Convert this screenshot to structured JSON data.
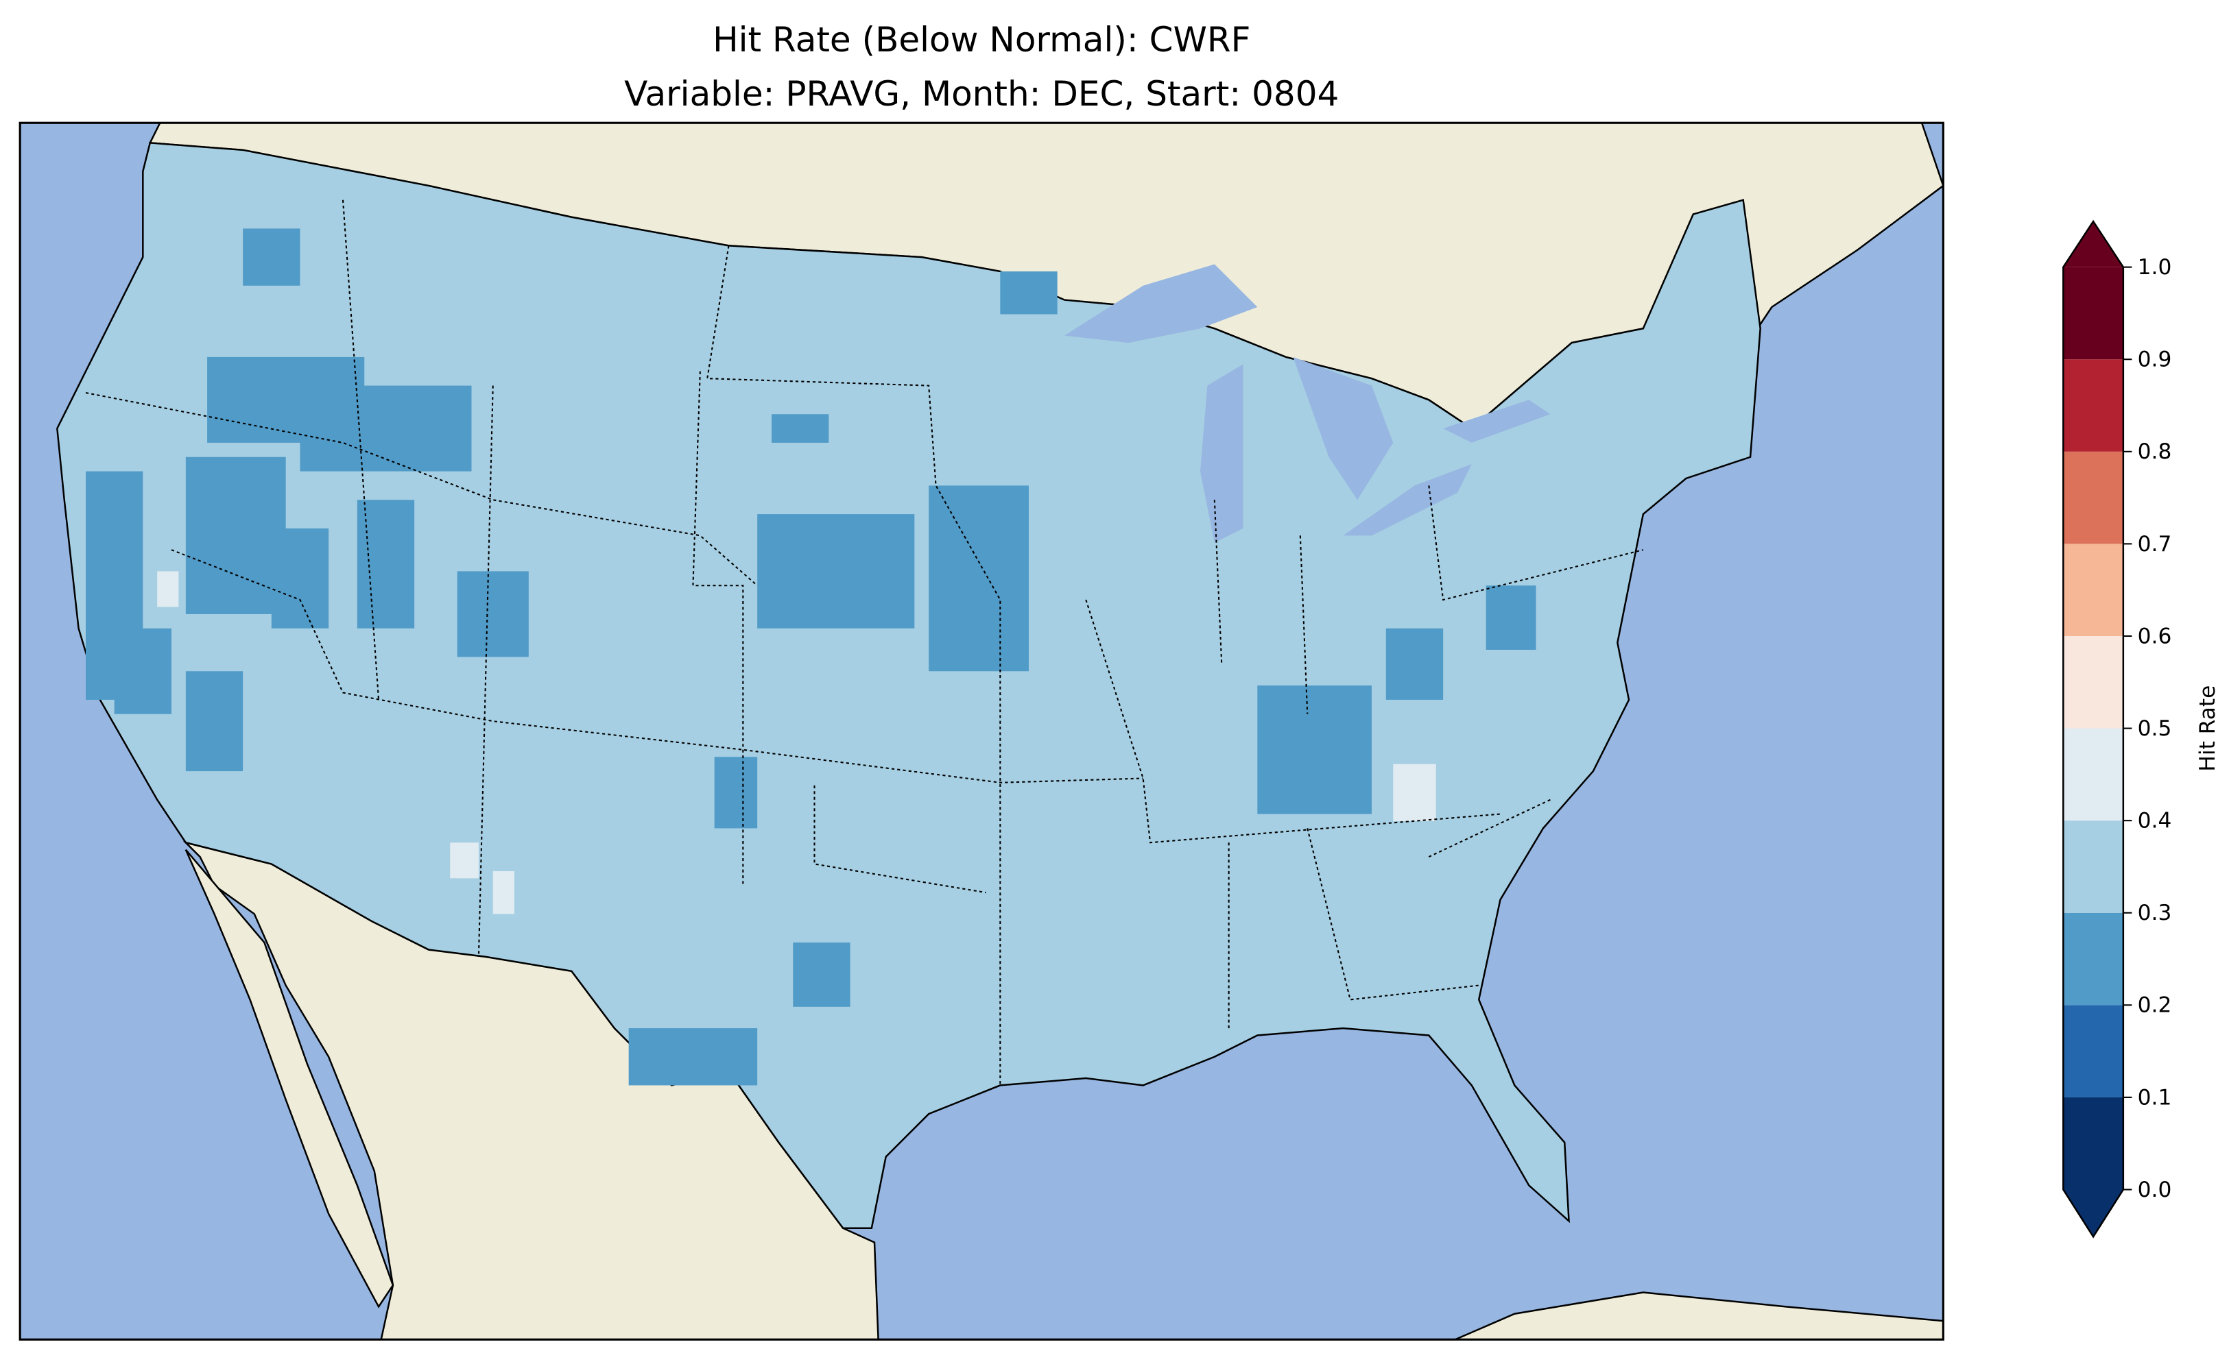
{
  "chart_data": {
    "type": "heatmap",
    "title": "Hit Rate (Below Normal): CWRF",
    "subtitle": "Variable: PRAVG, Month: DEC, Start: 0804",
    "region": "Contiguous United States",
    "colorbar": {
      "label": "Hit Rate",
      "range": [
        0.0,
        1.0
      ],
      "extend": "both",
      "ticks": [
        "0.0",
        "0.1",
        "0.2",
        "0.3",
        "0.4",
        "0.5",
        "0.6",
        "0.7",
        "0.8",
        "0.9",
        "1.0"
      ],
      "bins": [
        {
          "from": 0.0,
          "to": 0.1,
          "color": "#08306b"
        },
        {
          "from": 0.1,
          "to": 0.2,
          "color": "#2467ac"
        },
        {
          "from": 0.2,
          "to": 0.3,
          "color": "#519bc8"
        },
        {
          "from": 0.3,
          "to": 0.4,
          "color": "#a6cfe3"
        },
        {
          "from": 0.4,
          "to": 0.5,
          "color": "#e0ebf2"
        },
        {
          "from": 0.5,
          "to": 0.6,
          "color": "#f9e6dd"
        },
        {
          "from": 0.6,
          "to": 0.7,
          "color": "#f6b797"
        },
        {
          "from": 0.7,
          "to": 0.8,
          "color": "#dd725b"
        },
        {
          "from": 0.8,
          "to": 0.9,
          "color": "#b22231"
        },
        {
          "from": 0.9,
          "to": 1.0,
          "color": "#67001f"
        }
      ]
    },
    "dominant_value_range": [
      0.3,
      0.4
    ],
    "secondary_value_range": [
      0.2,
      0.3
    ],
    "colors": {
      "ocean": "#97b6e1",
      "land": "#efedda",
      "dominant": "#a6cfe3",
      "secondary": "#519bc8",
      "light": "#e0ebf2",
      "min": "#2467ac"
    }
  }
}
